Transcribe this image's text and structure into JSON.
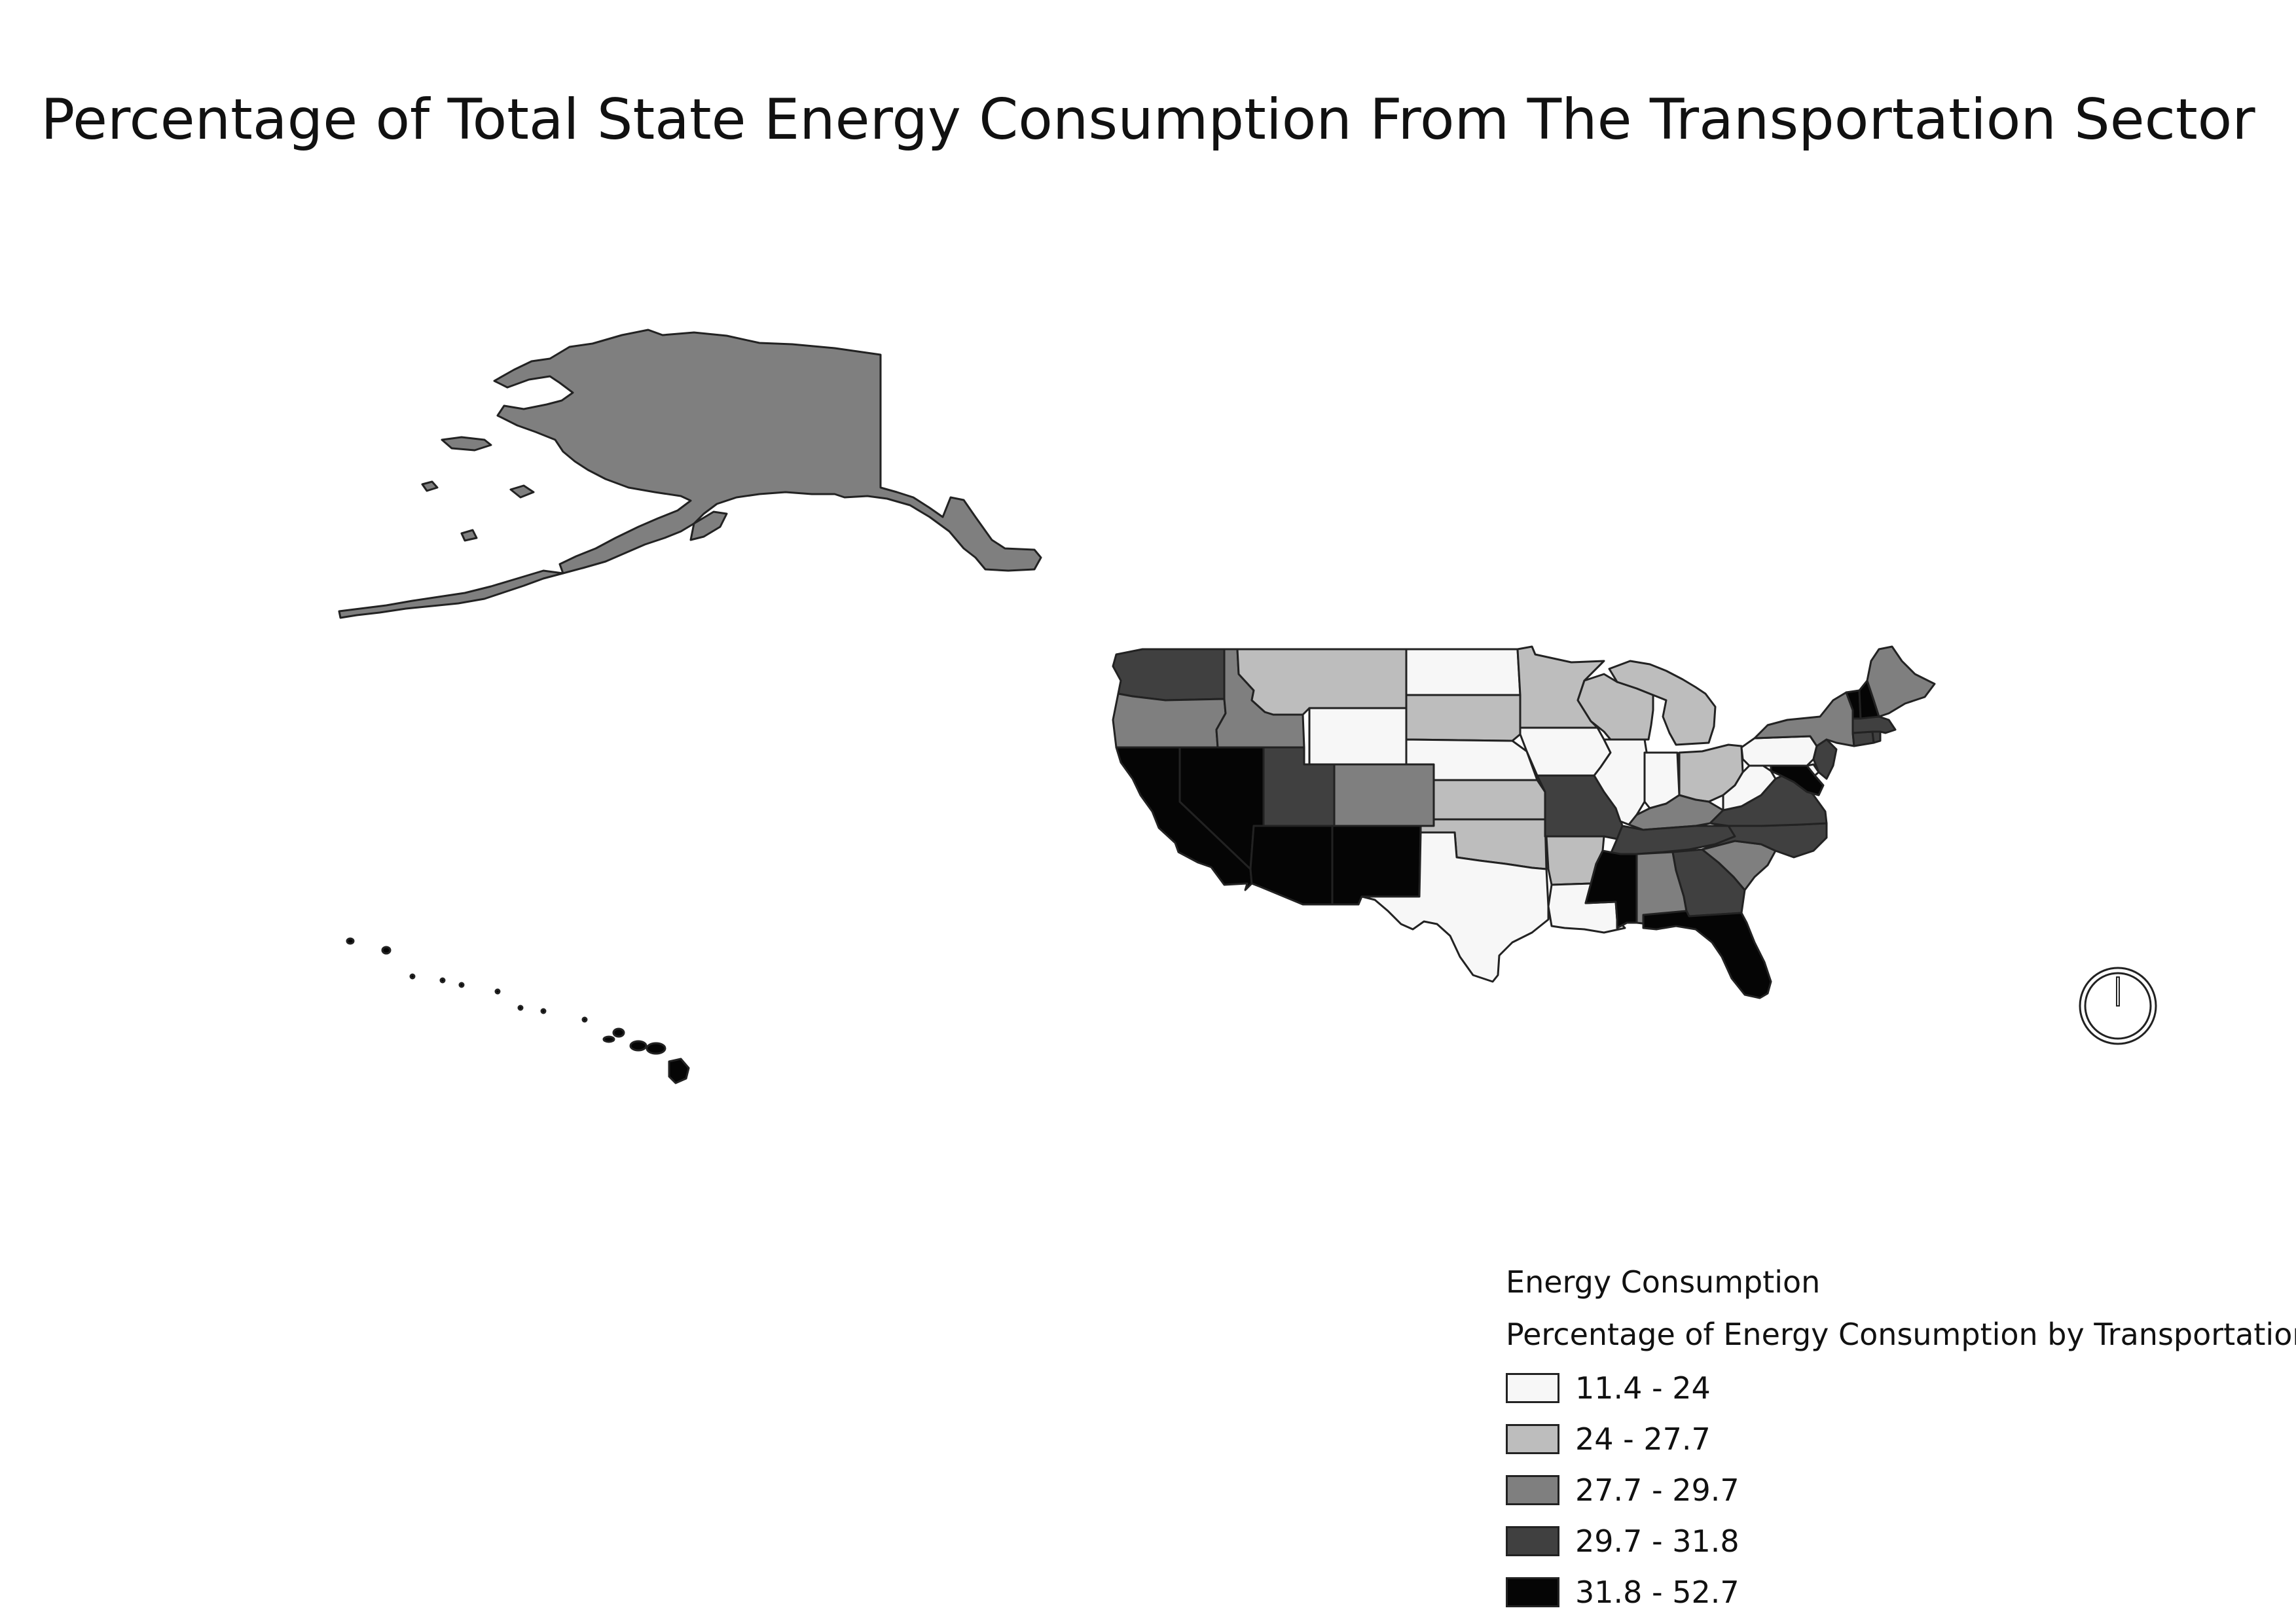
{
  "title": "Percentage of Total State Energy Consumption From The Transportation Sector",
  "legend": {
    "title": "Energy Consumption",
    "subtitle": "Percentage of Energy Consumption by Transportation",
    "classes": [
      {
        "label": "11.4 - 24",
        "color": "#f7f7f7"
      },
      {
        "label": "24 - 27.7",
        "color": "#bdbdbd"
      },
      {
        "label": "27.7 - 29.7",
        "color": "#7f7f7f"
      },
      {
        "label": "29.7 - 31.8",
        "color": "#404040"
      },
      {
        "label": "31.8 - 52.7",
        "color": "#050505"
      }
    ]
  },
  "map_elements": {
    "north_arrow": "north-arrow-icon"
  },
  "states": {
    "AK": 2,
    "HI": 4,
    "WA": 3,
    "OR": 2,
    "CA": 4,
    "NV": 4,
    "ID": 2,
    "MT": 1,
    "WY": 0,
    "UT": 3,
    "CO": 2,
    "AZ": 4,
    "NM": 4,
    "ND": 0,
    "SD": 1,
    "NE": 0,
    "KS": 1,
    "OK": 1,
    "TX": 0,
    "MN": 1,
    "IA": 0,
    "MO": 3,
    "AR": 1,
    "LA": 0,
    "WI": 1,
    "IL": 0,
    "MI": 1,
    "IN": 0,
    "OH": 1,
    "KY": 2,
    "TN": 3,
    "MS": 4,
    "AL": 2,
    "GA": 3,
    "FL": 4,
    "SC": 2,
    "NC": 3,
    "VA": 3,
    "WV": 0,
    "PA": 0,
    "NY": 2,
    "NJ": 3,
    "DE": 0,
    "MD": 4,
    "CT": 3,
    "RI": 3,
    "MA": 3,
    "VT": 4,
    "NH": 4,
    "ME": 2
  }
}
